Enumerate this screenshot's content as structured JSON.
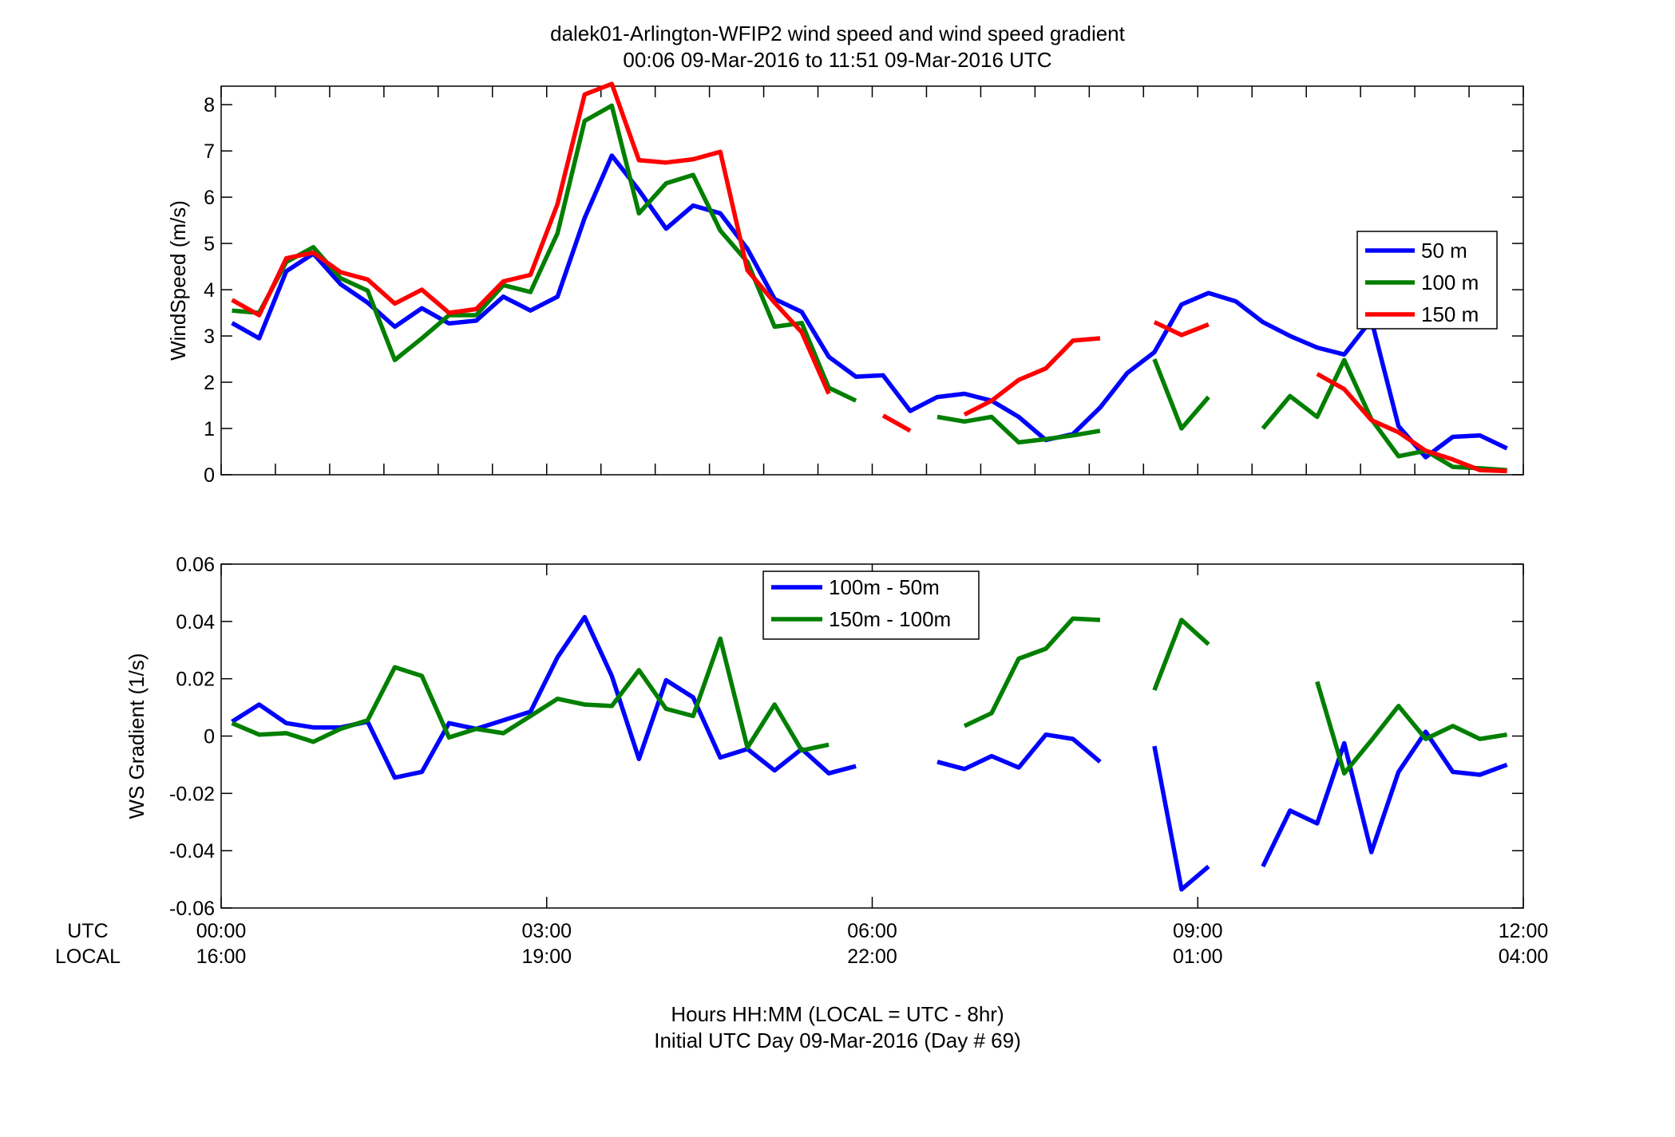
{
  "titles": {
    "line1": "dalek01-Arlington-WFIP2  wind speed and wind speed gradient",
    "line2": "00:06 09-Mar-2016 to 11:51 09-Mar-2016  UTC"
  },
  "xaxis": {
    "row_labels": [
      "UTC",
      "LOCAL"
    ],
    "ticks": [
      0,
      3,
      6,
      9,
      12
    ],
    "utc_tick_labels": [
      "00:00",
      "03:00",
      "06:00",
      "09:00",
      "12:00"
    ],
    "local_tick_labels": [
      "16:00",
      "19:00",
      "22:00",
      "01:00",
      "04:00"
    ],
    "label_line1": "Hours HH:MM  (LOCAL = UTC - 8hr)",
    "label_line2": "Initial UTC Day 09-Mar-2016 (Day # 69)",
    "range": [
      0,
      12
    ]
  },
  "colors": {
    "blue": "#0000ff",
    "green": "#007f00",
    "red": "#ff0000"
  },
  "chart_data": [
    {
      "type": "line",
      "ylabel": "WindSpeed (m/s)",
      "ylim": [
        0,
        8.4
      ],
      "yticks": [
        0,
        1,
        2,
        3,
        4,
        5,
        6,
        7,
        8
      ],
      "ytick_labels": [
        "0",
        "1",
        "2",
        "3",
        "4",
        "5",
        "6",
        "7",
        "8"
      ],
      "legend": "right-middle",
      "series": [
        {
          "name": "50 m",
          "color": "#0000ff",
          "points": [
            [
              0.1,
              3.28
            ],
            [
              0.35,
              2.95
            ],
            [
              0.6,
              4.4
            ],
            [
              0.85,
              4.78
            ],
            [
              1.1,
              4.12
            ],
            [
              1.35,
              3.72
            ],
            [
              1.6,
              3.2
            ],
            [
              1.85,
              3.6
            ],
            [
              2.1,
              3.27
            ],
            [
              2.35,
              3.33
            ],
            [
              2.6,
              3.85
            ],
            [
              2.85,
              3.55
            ],
            [
              3.1,
              3.85
            ],
            [
              3.35,
              5.55
            ],
            [
              3.6,
              6.9
            ],
            [
              3.85,
              6.15
            ],
            [
              4.1,
              5.32
            ],
            [
              4.35,
              5.82
            ],
            [
              4.6,
              5.65
            ],
            [
              4.85,
              4.88
            ],
            [
              5.1,
              3.8
            ],
            [
              5.35,
              3.52
            ],
            [
              5.6,
              2.55
            ],
            [
              5.85,
              2.12
            ],
            [
              6.1,
              2.15
            ],
            [
              6.35,
              1.38
            ],
            [
              6.6,
              1.68
            ],
            [
              6.85,
              1.75
            ],
            [
              7.1,
              1.6
            ],
            [
              7.35,
              1.25
            ],
            [
              7.6,
              0.75
            ],
            [
              7.85,
              0.88
            ],
            [
              8.1,
              1.45
            ],
            [
              8.35,
              2.2
            ],
            [
              8.6,
              2.65
            ],
            [
              8.85,
              3.68
            ],
            [
              9.1,
              3.93
            ],
            [
              9.35,
              3.75
            ],
            [
              9.6,
              3.3
            ],
            [
              9.85,
              3.0
            ],
            [
              10.1,
              2.75
            ],
            [
              10.35,
              2.6
            ],
            [
              10.6,
              3.35
            ],
            [
              10.85,
              1.05
            ],
            [
              11.1,
              0.38
            ],
            [
              11.35,
              0.82
            ],
            [
              11.6,
              0.85
            ],
            [
              11.85,
              0.57
            ]
          ]
        },
        {
          "name": "100 m",
          "color": "#007f00",
          "points": [
            [
              0.1,
              3.55
            ],
            [
              0.35,
              3.5
            ],
            [
              0.6,
              4.6
            ],
            [
              0.85,
              4.92
            ],
            [
              1.1,
              4.25
            ],
            [
              1.35,
              3.98
            ],
            [
              1.6,
              2.48
            ],
            [
              1.85,
              2.95
            ],
            [
              2.1,
              3.45
            ],
            [
              2.35,
              3.45
            ],
            [
              2.6,
              4.1
            ],
            [
              2.85,
              3.95
            ],
            [
              3.1,
              5.22
            ],
            [
              3.35,
              7.65
            ],
            [
              3.6,
              7.98
            ],
            [
              3.85,
              5.65
            ],
            [
              4.1,
              6.3
            ],
            [
              4.35,
              6.48
            ],
            [
              4.6,
              5.28
            ],
            [
              4.85,
              4.6
            ],
            [
              5.1,
              3.2
            ],
            [
              5.35,
              3.28
            ],
            [
              5.6,
              1.88
            ],
            [
              5.85,
              1.6
            ],
            null,
            [
              6.6,
              1.25
            ],
            [
              6.85,
              1.15
            ],
            [
              7.1,
              1.25
            ],
            [
              7.35,
              0.7
            ],
            [
              7.6,
              0.77
            ],
            [
              7.85,
              0.85
            ],
            [
              8.1,
              0.95
            ],
            null,
            [
              8.6,
              2.5
            ],
            [
              8.85,
              1.0
            ],
            [
              9.1,
              1.68
            ],
            null,
            [
              9.6,
              1.0
            ],
            [
              9.85,
              1.7
            ],
            [
              10.1,
              1.25
            ],
            [
              10.35,
              2.48
            ],
            [
              10.6,
              1.2
            ],
            [
              10.85,
              0.4
            ],
            [
              11.1,
              0.52
            ],
            [
              11.35,
              0.17
            ],
            [
              11.6,
              0.14
            ],
            [
              11.85,
              0.1
            ]
          ]
        },
        {
          "name": "150 m",
          "color": "#ff0000",
          "points": [
            [
              0.1,
              3.78
            ],
            [
              0.35,
              3.45
            ],
            [
              0.6,
              4.68
            ],
            [
              0.85,
              4.8
            ],
            [
              1.1,
              4.38
            ],
            [
              1.35,
              4.22
            ],
            [
              1.6,
              3.7
            ],
            [
              1.85,
              4.0
            ],
            [
              2.1,
              3.5
            ],
            [
              2.35,
              3.58
            ],
            [
              2.6,
              4.18
            ],
            [
              2.85,
              4.32
            ],
            [
              3.1,
              5.85
            ],
            [
              3.35,
              8.22
            ],
            [
              3.6,
              8.45
            ],
            [
              3.85,
              6.8
            ],
            [
              4.1,
              6.75
            ],
            [
              4.35,
              6.82
            ],
            [
              4.6,
              6.98
            ],
            [
              4.85,
              4.42
            ],
            [
              5.1,
              3.72
            ],
            [
              5.35,
              3.08
            ],
            [
              5.6,
              1.75
            ],
            null,
            [
              6.1,
              1.28
            ],
            [
              6.35,
              0.95
            ],
            null,
            [
              6.85,
              1.3
            ],
            [
              7.1,
              1.6
            ],
            [
              7.35,
              2.05
            ],
            [
              7.6,
              2.3
            ],
            [
              7.85,
              2.9
            ],
            [
              8.1,
              2.95
            ],
            null,
            [
              8.6,
              3.3
            ],
            [
              8.85,
              3.02
            ],
            [
              9.1,
              3.25
            ],
            null,
            [
              10.1,
              2.18
            ],
            [
              10.35,
              1.85
            ],
            [
              10.6,
              1.18
            ],
            [
              10.85,
              0.92
            ],
            [
              11.1,
              0.52
            ],
            [
              11.35,
              0.33
            ],
            [
              11.6,
              0.1
            ],
            [
              11.85,
              0.08
            ]
          ]
        }
      ]
    },
    {
      "type": "line",
      "ylabel": "WS Gradient (1/s)",
      "ylim": [
        -0.06,
        0.06
      ],
      "yticks": [
        -0.06,
        -0.04,
        -0.02,
        0,
        0.02,
        0.04,
        0.06
      ],
      "ytick_labels": [
        "-0.06",
        "-0.04",
        "-0.02",
        "0",
        "0.02",
        "0.04",
        "0.06"
      ],
      "legend": "top-center",
      "series": [
        {
          "name": "100m - 50m",
          "color": "#0000ff",
          "points": [
            [
              0.1,
              0.005
            ],
            [
              0.35,
              0.011
            ],
            [
              0.6,
              0.0045
            ],
            [
              0.85,
              0.003
            ],
            [
              1.1,
              0.003
            ],
            [
              1.35,
              0.005
            ],
            [
              1.6,
              -0.0145
            ],
            [
              1.85,
              -0.0125
            ],
            [
              2.1,
              0.0045
            ],
            [
              2.35,
              0.0025
            ],
            [
              2.6,
              0.0055
            ],
            [
              2.85,
              0.0085
            ],
            [
              3.1,
              0.0275
            ],
            [
              3.35,
              0.0415
            ],
            [
              3.6,
              0.021
            ],
            [
              3.85,
              -0.008
            ],
            [
              4.1,
              0.0195
            ],
            [
              4.35,
              0.0135
            ],
            [
              4.6,
              -0.0075
            ],
            [
              4.85,
              -0.0045
            ],
            [
              5.1,
              -0.012
            ],
            [
              5.35,
              -0.0045
            ],
            [
              5.6,
              -0.013
            ],
            [
              5.85,
              -0.0105
            ],
            null,
            [
              6.6,
              -0.009
            ],
            [
              6.85,
              -0.0115
            ],
            [
              7.1,
              -0.007
            ],
            [
              7.35,
              -0.011
            ],
            [
              7.6,
              0.0005
            ],
            [
              7.85,
              -0.001
            ],
            [
              8.1,
              -0.009
            ],
            null,
            [
              8.6,
              -0.0035
            ],
            [
              8.85,
              -0.0535
            ],
            [
              9.1,
              -0.0455
            ],
            null,
            [
              9.6,
              -0.0455
            ],
            [
              9.85,
              -0.026
            ],
            [
              10.1,
              -0.0305
            ],
            [
              10.35,
              -0.0025
            ],
            [
              10.6,
              -0.0405
            ],
            [
              10.85,
              -0.0125
            ],
            [
              11.1,
              0.0015
            ],
            [
              11.35,
              -0.0125
            ],
            [
              11.6,
              -0.0135
            ],
            [
              11.85,
              -0.01
            ]
          ]
        },
        {
          "name": "150m - 100m",
          "color": "#007f00",
          "points": [
            [
              0.1,
              0.0045
            ],
            [
              0.35,
              0.0005
            ],
            [
              0.6,
              0.001
            ],
            [
              0.85,
              -0.002
            ],
            [
              1.1,
              0.0025
            ],
            [
              1.35,
              0.0055
            ],
            [
              1.6,
              0.024
            ],
            [
              1.85,
              0.021
            ],
            [
              2.1,
              -0.0005
            ],
            [
              2.35,
              0.0025
            ],
            [
              2.6,
              0.001
            ],
            [
              2.85,
              0.007
            ],
            [
              3.1,
              0.013
            ],
            [
              3.35,
              0.011
            ],
            [
              3.6,
              0.0105
            ],
            [
              3.85,
              0.023
            ],
            [
              4.1,
              0.0095
            ],
            [
              4.35,
              0.007
            ],
            [
              4.6,
              0.034
            ],
            [
              4.85,
              -0.004
            ],
            [
              5.1,
              0.011
            ],
            [
              5.35,
              -0.005
            ],
            [
              5.6,
              -0.003
            ],
            null,
            [
              6.85,
              0.0035
            ],
            [
              7.1,
              0.008
            ],
            [
              7.35,
              0.027
            ],
            [
              7.6,
              0.0305
            ],
            [
              7.85,
              0.041
            ],
            [
              8.1,
              0.0405
            ],
            null,
            [
              8.6,
              0.016
            ],
            [
              8.85,
              0.0405
            ],
            [
              9.1,
              0.032
            ],
            null,
            [
              10.1,
              0.019
            ],
            [
              10.35,
              -0.013
            ],
            [
              10.6,
              -0.0015
            ],
            [
              10.85,
              0.0105
            ],
            [
              11.1,
              -0.001
            ],
            [
              11.35,
              0.0035
            ],
            [
              11.6,
              -0.001
            ],
            [
              11.85,
              0.0005
            ]
          ]
        }
      ]
    }
  ]
}
